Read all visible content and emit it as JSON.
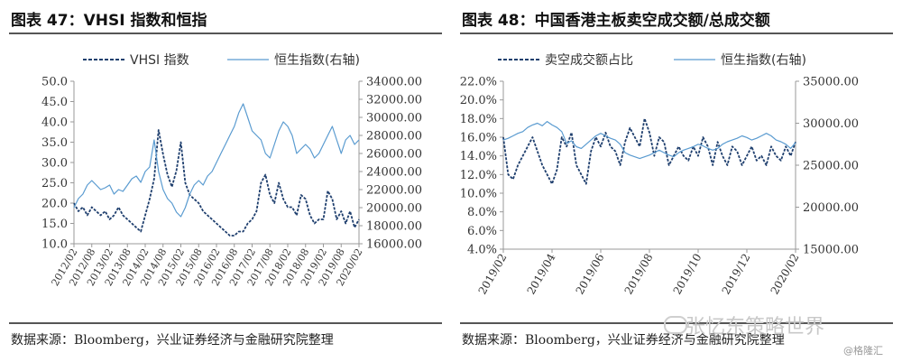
{
  "charts": {
    "left": {
      "title": "图表 47：VHSI 指数和恒指",
      "source": "数据来源：Bloomberg，兴业证券经济与金融研究院整理"
    },
    "right": {
      "title": "图表 48：中国香港主板卖空成交额/总成交额",
      "source": "数据来源：Bloomberg，兴业证券经济与金融研究院整理"
    }
  },
  "watermark": "张忆东策略世界",
  "credit": "@格隆汇",
  "colors": {
    "dark_series": "#1f3f6e",
    "light_series": "#5a9bd0",
    "axis": "#999999"
  },
  "chart_data": [
    {
      "type": "line",
      "legend_position": "top",
      "x_ticks": [
        "2012/02",
        "2012/08",
        "2013/02",
        "2013/08",
        "2014/02",
        "2014/08",
        "2015/02",
        "2015/08",
        "2016/02",
        "2016/08",
        "2017/02",
        "2017/08",
        "2018/02",
        "2018/08",
        "2019/02",
        "2019/08",
        "2020/02"
      ],
      "y_left_ticks": [
        "10.0",
        "15.0",
        "20.0",
        "25.0",
        "30.0",
        "35.0",
        "40.0",
        "45.0",
        "50.0"
      ],
      "y_left_range": [
        10,
        50
      ],
      "y_right_ticks": [
        "16000.00",
        "18000.00",
        "20000.00",
        "22000.00",
        "24000.00",
        "26000.00",
        "28000.00",
        "30000.00",
        "32000.00",
        "34000.00"
      ],
      "y_right_range": [
        16000,
        34000
      ],
      "series": [
        {
          "name": "VHSI 指数",
          "style": "dashed",
          "axis": "left",
          "values": [
            20,
            18,
            19,
            17,
            19,
            18,
            17,
            18,
            16,
            17,
            19,
            17,
            16,
            15,
            14,
            13,
            17,
            21,
            26,
            38,
            32,
            27,
            24,
            28,
            35,
            25,
            22,
            21,
            20,
            18,
            17,
            16,
            15,
            14,
            13,
            12,
            12,
            13,
            13,
            15,
            16,
            18,
            25,
            27,
            22,
            20,
            25,
            21,
            19,
            19,
            17,
            22,
            21,
            17,
            15,
            16,
            16,
            23,
            21,
            16,
            18,
            15,
            18,
            14,
            16
          ]
        },
        {
          "name": "恒生指数(右轴)",
          "style": "solid",
          "axis": "right",
          "values": [
            20000,
            21000,
            21500,
            22500,
            23000,
            22500,
            22000,
            22200,
            22500,
            21500,
            22000,
            21800,
            22500,
            23200,
            23500,
            22800,
            24000,
            24500,
            27500,
            24000,
            22000,
            21000,
            20500,
            19500,
            19000,
            20000,
            21500,
            22500,
            23000,
            22500,
            23500,
            24000,
            25000,
            26000,
            27000,
            28000,
            29000,
            30500,
            31500,
            30000,
            28500,
            28000,
            27500,
            26000,
            25500,
            27000,
            28500,
            29500,
            29000,
            28000,
            26000,
            26500,
            27000,
            26500,
            25500,
            26000,
            27000,
            28000,
            29000,
            27500,
            26000,
            27500,
            28000,
            27000,
            27500
          ]
        }
      ]
    },
    {
      "type": "line",
      "legend_position": "top",
      "x_ticks": [
        "2019/02",
        "2019/04",
        "2019/06",
        "2019/08",
        "2019/10",
        "2019/12",
        "2020/02"
      ],
      "y_left_ticks": [
        "4.0%",
        "6.0%",
        "8.0%",
        "10.0%",
        "12.0%",
        "14.0%",
        "16.0%",
        "18.0%",
        "20.0%",
        "22.0%"
      ],
      "y_left_range": [
        4,
        22
      ],
      "y_right_ticks": [
        "15000.00",
        "20000.00",
        "25000.00",
        "30000.00",
        "35000.00"
      ],
      "y_right_range": [
        15000,
        35000
      ],
      "series": [
        {
          "name": "卖空成交额占比",
          "style": "dashed",
          "axis": "left",
          "values": [
            16,
            12,
            11.5,
            13,
            14,
            15,
            16,
            14.5,
            13,
            12,
            11,
            12.5,
            16,
            15,
            16.5,
            13,
            12,
            11,
            14.5,
            16,
            15,
            16.5,
            15,
            14.5,
            13,
            15.5,
            17,
            16,
            15,
            18,
            16.5,
            14,
            16,
            15.5,
            13,
            14,
            15,
            14,
            13.5,
            15,
            14,
            16,
            15,
            13,
            15.5,
            14,
            13,
            15,
            14.5,
            13,
            14,
            15,
            13.5,
            14,
            13,
            15,
            14,
            13.5,
            15,
            14,
            15.5
          ]
        },
        {
          "name": "恒生指数(右轴)",
          "style": "solid",
          "axis": "right",
          "values": [
            28000,
            28200,
            28500,
            28800,
            29000,
            29500,
            29800,
            30000,
            29700,
            30200,
            29800,
            29500,
            29000,
            27600,
            27900,
            27200,
            27000,
            27500,
            28000,
            28500,
            28800,
            28500,
            28200,
            28000,
            27500,
            26500,
            26200,
            26000,
            25800,
            26000,
            26200,
            26500,
            26800,
            26500,
            26200,
            26000,
            26500,
            26800,
            27000,
            27200,
            27500,
            27300,
            27000,
            26800,
            27000,
            27500,
            27800,
            28000,
            28200,
            28500,
            28300,
            28000,
            28200,
            28500,
            28800,
            28500,
            28000,
            27800,
            27500,
            27000,
            27700
          ]
        }
      ]
    }
  ]
}
